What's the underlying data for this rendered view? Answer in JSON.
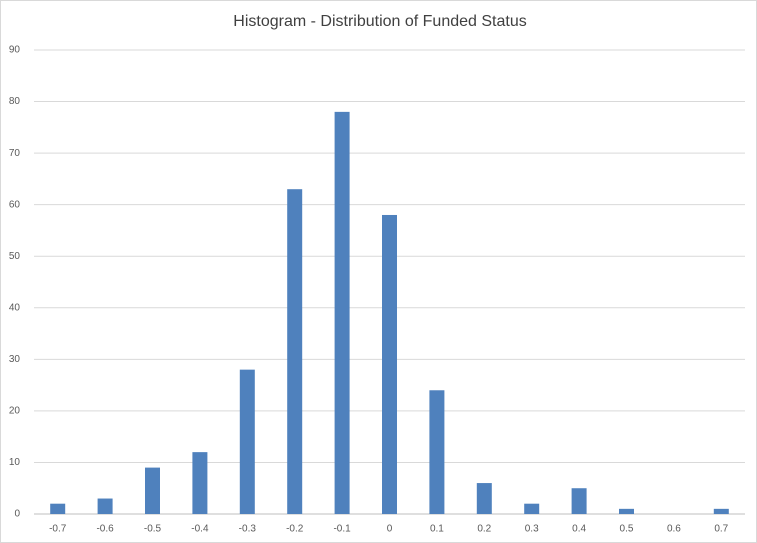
{
  "chart_data": {
    "type": "bar",
    "title": "Histogram - Distribution of Funded Status",
    "categories": [
      "-0.7",
      "-0.6",
      "-0.5",
      "-0.4",
      "-0.3",
      "-0.2",
      "-0.1",
      "0",
      "0.1",
      "0.2",
      "0.3",
      "0.4",
      "0.5",
      "0.6",
      "0.7"
    ],
    "values": [
      2,
      3,
      9,
      12,
      28,
      63,
      78,
      58,
      24,
      6,
      2,
      5,
      1,
      0,
      1
    ],
    "color": "#4f81bd",
    "ylim": [
      0,
      90
    ],
    "yticks": [
      0,
      10,
      20,
      30,
      40,
      50,
      60,
      70,
      80,
      90
    ],
    "grid": true
  }
}
